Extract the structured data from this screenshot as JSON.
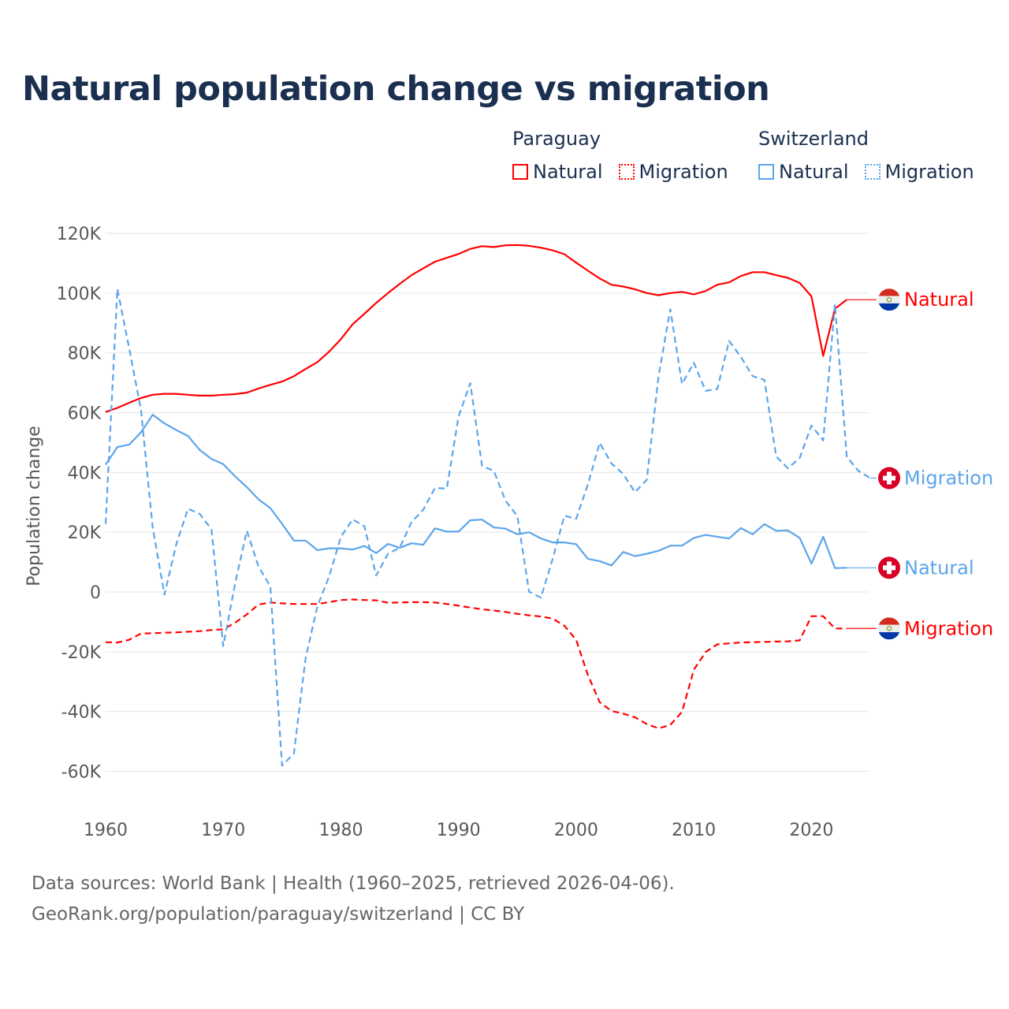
{
  "title": "Natural population change vs migration",
  "legend": {
    "groups": [
      {
        "name": "Paraguay",
        "items": [
          {
            "label": "Natural",
            "style": "solid"
          },
          {
            "label": "Migration",
            "style": "dotted"
          }
        ],
        "color": "#ff0000"
      },
      {
        "name": "Switzerland",
        "items": [
          {
            "label": "Natural",
            "style": "solid"
          },
          {
            "label": "Migration",
            "style": "dotted"
          }
        ],
        "color": "#5ca5ea"
      }
    ]
  },
  "footer": {
    "line1": "Data sources: World Bank | Health (1960–2025, retrieved 2026-04-06).",
    "line2": "GeoRank.org/population/paraguay/switzerland | CC BY"
  },
  "chart_data": {
    "type": "line",
    "title": "Natural population change vs migration",
    "xlabel": "",
    "ylabel": "Population change",
    "xlim": [
      1960,
      2025
    ],
    "ylim": [
      -60000,
      120000
    ],
    "yticks": [
      120000,
      100000,
      80000,
      60000,
      40000,
      20000,
      0,
      -20000,
      -40000,
      -60000
    ],
    "ytick_labels": [
      "120K",
      "100K",
      "80K",
      "60K",
      "40K",
      "20K",
      "0",
      "-20K",
      "-40K",
      "-60K"
    ],
    "xticks": [
      1960,
      1970,
      1980,
      1990,
      2000,
      2010,
      2020
    ],
    "xtick_labels": [
      "1960",
      "1970",
      "1980",
      "1990",
      "2000",
      "2010",
      "2020"
    ],
    "grid": true,
    "start_year": 1960,
    "series": [
      {
        "name": "Paraguay Natural",
        "country": "Paraguay",
        "label": "Natural",
        "color": "#ff0000",
        "dashed": false,
        "flag": "paraguay",
        "values": [
          60200,
          61600,
          63300,
          64900,
          66000,
          66300,
          66300,
          66000,
          65700,
          65700,
          66000,
          66200,
          66700,
          68100,
          69300,
          70400,
          72200,
          74600,
          76900,
          80400,
          84600,
          89600,
          93100,
          96700,
          100000,
          103100,
          106000,
          108300,
          110500,
          111800,
          113100,
          114800,
          115700,
          115400,
          116000,
          116100,
          115800,
          115200,
          114300,
          113000,
          110200,
          107500,
          104900,
          102800,
          102200,
          101300,
          100000,
          99300,
          100000,
          100400,
          99600,
          100700,
          102800,
          103600,
          105700,
          107000,
          107000,
          106000,
          105100,
          103400,
          98900,
          79000,
          94800,
          97800
        ]
      },
      {
        "name": "Paraguay Migration",
        "country": "Paraguay",
        "label": "Migration",
        "color": "#ff0000",
        "dashed": true,
        "flag": "paraguay",
        "values": [
          -16800,
          -16900,
          -16000,
          -13900,
          -13800,
          -13600,
          -13500,
          -13300,
          -13100,
          -12700,
          -12500,
          -10300,
          -7500,
          -4200,
          -3500,
          -3800,
          -4000,
          -4000,
          -4000,
          -3400,
          -2700,
          -2500,
          -2700,
          -2800,
          -3600,
          -3500,
          -3400,
          -3400,
          -3500,
          -4000,
          -4600,
          -5200,
          -5800,
          -6200,
          -6700,
          -7300,
          -7800,
          -8200,
          -8900,
          -11300,
          -16000,
          -27800,
          -36900,
          -39800,
          -40700,
          -41900,
          -44200,
          -45600,
          -44500,
          -40100,
          -26000,
          -20100,
          -17500,
          -17200,
          -16900,
          -16800,
          -16700,
          -16600,
          -16500,
          -16200,
          -8100,
          -8100,
          -12200,
          -12200
        ]
      },
      {
        "name": "Switzerland Natural",
        "country": "Switzerland",
        "label": "Natural",
        "color": "#5ca5ea",
        "dashed": false,
        "flag": "switzerland",
        "values": [
          42600,
          48500,
          49300,
          53400,
          59300,
          56400,
          54200,
          52200,
          47500,
          44500,
          42800,
          38700,
          35100,
          31000,
          28100,
          22800,
          17200,
          17200,
          14000,
          14600,
          14600,
          14200,
          15400,
          13000,
          16100,
          14800,
          16300,
          15800,
          21300,
          20200,
          20200,
          24000,
          24200,
          21600,
          21200,
          19300,
          20000,
          17900,
          16600,
          16600,
          16000,
          11100,
          10300,
          8900,
          13400,
          12000,
          12800,
          13800,
          15500,
          15500,
          18100,
          19100,
          18500,
          17900,
          21400,
          19300,
          22700,
          20500,
          20600,
          18100,
          9500,
          18500,
          8000,
          8100
        ]
      },
      {
        "name": "Switzerland Migration",
        "country": "Switzerland",
        "label": "Migration",
        "color": "#5ca5ea",
        "dashed": true,
        "flag": "switzerland",
        "values": [
          22800,
          101400,
          81600,
          61000,
          21600,
          -900,
          15800,
          27900,
          26100,
          21000,
          -18100,
          2800,
          20500,
          8500,
          1900,
          -58100,
          -54000,
          -22100,
          -4800,
          5200,
          18500,
          24300,
          22000,
          5500,
          12800,
          14800,
          23400,
          27500,
          34800,
          34600,
          58700,
          69900,
          42200,
          40500,
          30500,
          25400,
          100,
          -1900,
          11100,
          25500,
          24500,
          36000,
          49900,
          43000,
          39500,
          33400,
          37500,
          72200,
          94600,
          69600,
          76700,
          67300,
          67900,
          84000,
          78700,
          72200,
          71000,
          45400,
          41400,
          44800,
          55700,
          50700,
          96300,
          45200,
          40500,
          38100
        ]
      }
    ]
  }
}
